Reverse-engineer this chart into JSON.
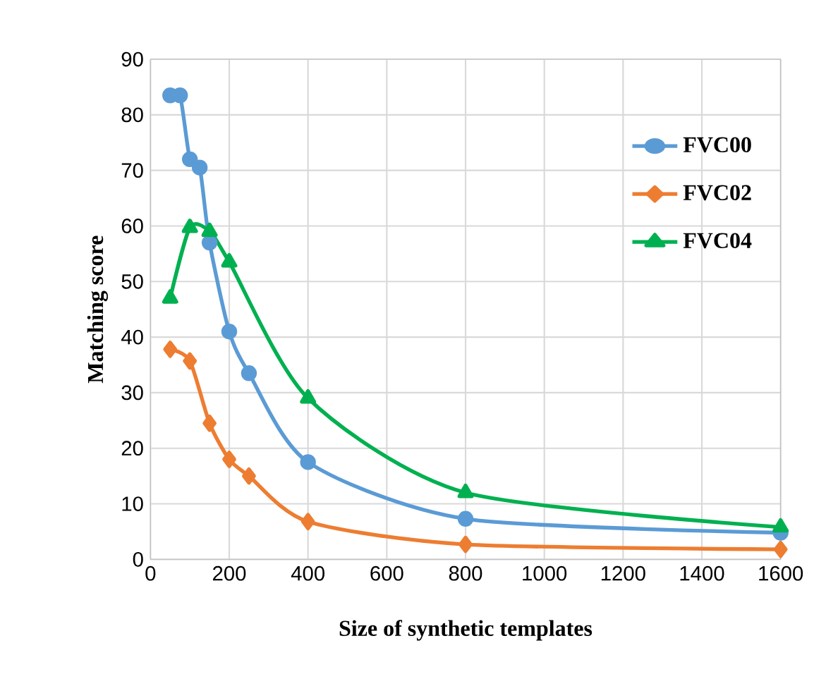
{
  "chart_data": {
    "type": "line",
    "xlabel": "Size of synthetic templates",
    "ylabel": "Matching score",
    "xlim": [
      0,
      1600
    ],
    "xticks": [
      0,
      200,
      400,
      600,
      800,
      1000,
      1200,
      1400,
      1600
    ],
    "ylim": [
      0,
      90
    ],
    "yticks": [
      0,
      10,
      20,
      30,
      40,
      50,
      60,
      70,
      80,
      90
    ],
    "grid": true,
    "legend": "top right",
    "line_style": "solid",
    "series": [
      {
        "name": "FVC00",
        "color": "#5b9bd5",
        "marker": "circle",
        "x": [
          50,
          75,
          100,
          125,
          150,
          200,
          250,
          400,
          800,
          1600
        ],
        "values": [
          83.5,
          83.5,
          72,
          70.5,
          57,
          41,
          33.5,
          17.5,
          7.3,
          4.8
        ]
      },
      {
        "name": "FVC02",
        "color": "#ed7d31",
        "marker": "diamond",
        "x": [
          50,
          100,
          150,
          200,
          250,
          400,
          800,
          1600
        ],
        "values": [
          37.8,
          35.7,
          24.5,
          18,
          15,
          6.8,
          2.7,
          1.8
        ]
      },
      {
        "name": "FVC04",
        "color": "#00b050",
        "marker": "triangle",
        "x": [
          50,
          100,
          150,
          200,
          400,
          800,
          1600
        ],
        "values": [
          47,
          59.7,
          59,
          53.5,
          29,
          12,
          5.8
        ]
      }
    ]
  }
}
